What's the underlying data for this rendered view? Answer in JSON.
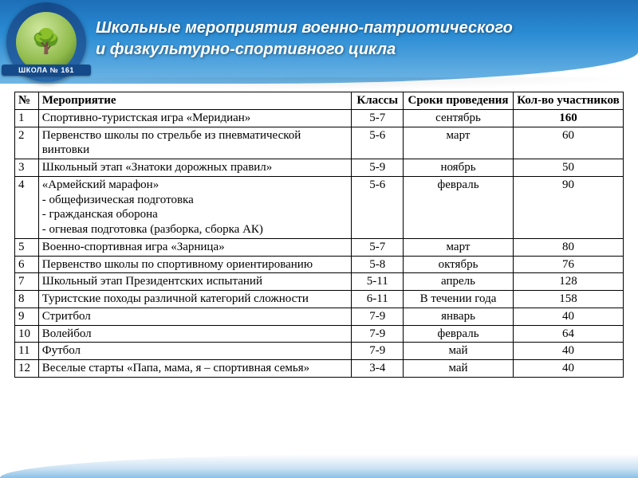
{
  "logo": {
    "text_top": "ШКОЛА № 161",
    "tree_glyph": "🌳"
  },
  "title_line1": "Школьные мероприятия военно-патриотического",
  "title_line2": "и физкультурно-спортивного цикла",
  "columns": {
    "num": "№",
    "event": "Мероприятие",
    "classes": "Классы",
    "term": "Сроки проведения",
    "count": "Кол-во участников"
  },
  "rows": [
    {
      "n": "1",
      "event": "Спортивно-туристская игра «Меридиан»",
      "cls": "5-7",
      "term": "сентябрь",
      "cnt": "160",
      "bold_cnt": true
    },
    {
      "n": "2",
      "event": "Первенство школы по стрельбе из пневматической винтовки",
      "cls": "5-6",
      "term": "март",
      "cnt": "60"
    },
    {
      "n": "3",
      "event": "Школьный этап «Знатоки дорожных правил»",
      "cls": "5-9",
      "term": "ноябрь",
      "cnt": "50"
    },
    {
      "n": "4",
      "event": "«Армейский марафон»\n- общефизическая подготовка\n- гражданская оборона\n- огневая подготовка (разборка, сборка АК)",
      "cls": "5-6",
      "term": "февраль",
      "cnt": "90"
    },
    {
      "n": "5",
      "event": "Военно-спортивная игра «Зарница»",
      "cls": "5-7",
      "term": "март",
      "cnt": "80"
    },
    {
      "n": "6",
      "event": " Первенство школы по спортивному ориентированию",
      "cls": "5-8",
      "term": "октябрь",
      "cnt": "76"
    },
    {
      "n": "7",
      "event": "Школьный этап Президентских испытаний",
      "cls": "5-11",
      "term": "апрель",
      "cnt": "128"
    },
    {
      "n": "8",
      "event": "Туристские походы различной категорий сложности",
      "cls": "6-11",
      "term": "В течении года",
      "cnt": "158"
    },
    {
      "n": "9",
      "event": "Стритбол",
      "cls": "7-9",
      "term": "январь",
      "cnt": "40"
    },
    {
      "n": "10",
      "event": "Волейбол",
      "cls": "7-9",
      "term": "февраль",
      "cnt": "64"
    },
    {
      "n": "11",
      "event": "Футбол",
      "cls": "7-9",
      "term": "май",
      "cnt": "40"
    },
    {
      "n": "12",
      "event": "Веселые старты «Папа, мама, я – спортивная семья»",
      "cls": "3-4",
      "term": "май",
      "cnt": "40"
    }
  ]
}
